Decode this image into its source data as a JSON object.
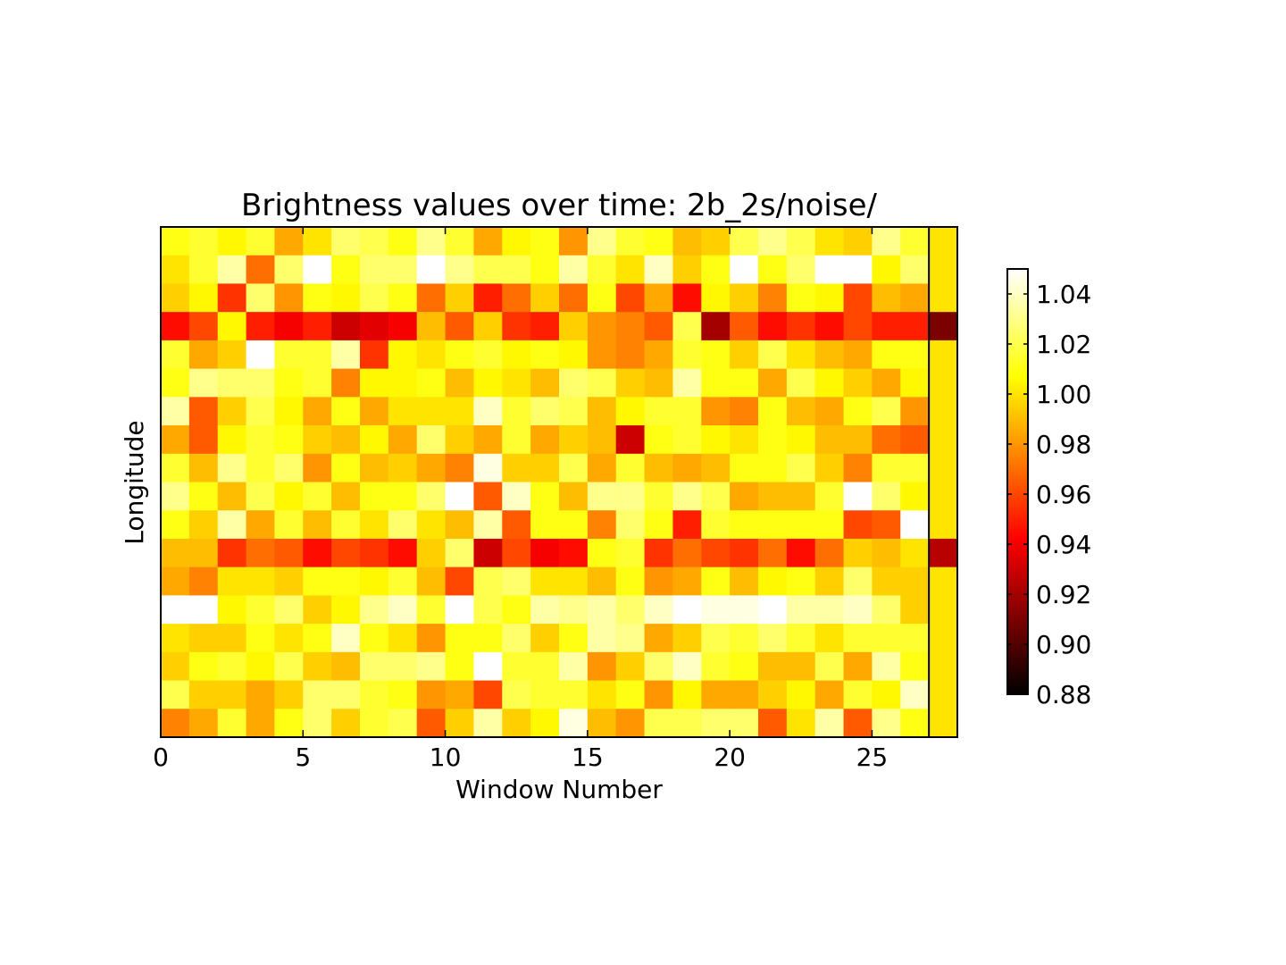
{
  "chart_data": {
    "type": "heatmap",
    "title": "Brightness values over time: 2b_2s/noise/",
    "xlabel": "Window Number",
    "ylabel": "Longitude",
    "xlim": [
      0,
      28
    ],
    "x_ticks": [
      0,
      5,
      10,
      15,
      20,
      25
    ],
    "x_tick_labels": [
      "0",
      "5",
      "10",
      "15",
      "20",
      "25"
    ],
    "n_columns": 28,
    "n_rows": 18,
    "separator_x": 27,
    "colormap": "hot",
    "color_range": [
      0.88,
      1.05
    ],
    "colorbar_ticks": [
      0.88,
      0.9,
      0.92,
      0.94,
      0.96,
      0.98,
      1.0,
      1.02,
      1.04
    ],
    "colorbar_tick_labels": [
      "0.88",
      "0.90",
      "0.92",
      "0.94",
      "0.96",
      "0.98",
      "1.00",
      "1.02",
      "1.04"
    ],
    "grid": false,
    "values": [
      [
        1.01,
        1.015,
        1.005,
        1.015,
        0.985,
        1.0,
        1.025,
        1.02,
        1.01,
        1.03,
        1.015,
        0.985,
        1.005,
        1.01,
        0.98,
        1.03,
        1.015,
        1.01,
        0.99,
        0.995,
        1.02,
        1.03,
        1.02,
        1.0,
        0.995,
        1.03,
        1.015,
        1.0
      ],
      [
        1.0,
        1.015,
        1.035,
        0.97,
        1.025,
        1.05,
        1.01,
        1.025,
        1.025,
        1.05,
        1.03,
        1.02,
        1.02,
        1.01,
        1.035,
        1.015,
        1.0,
        1.04,
        0.995,
        1.01,
        1.05,
        1.01,
        1.025,
        1.05,
        1.05,
        1.005,
        1.025,
        1.0
      ],
      [
        0.995,
        1.005,
        0.955,
        1.025,
        0.98,
        1.01,
        1.005,
        1.02,
        1.01,
        0.97,
        0.995,
        0.95,
        0.97,
        0.995,
        0.97,
        1.01,
        0.96,
        0.985,
        0.945,
        1.005,
        0.995,
        0.975,
        1.01,
        1.005,
        0.96,
        0.99,
        0.985,
        1.0
      ],
      [
        0.945,
        0.96,
        1.005,
        0.95,
        0.94,
        0.95,
        0.93,
        0.935,
        0.94,
        0.99,
        0.965,
        0.995,
        0.955,
        0.95,
        0.995,
        0.98,
        0.975,
        0.965,
        1.02,
        0.92,
        0.965,
        0.945,
        0.955,
        0.945,
        0.96,
        0.95,
        0.95,
        0.91
      ],
      [
        1.015,
        0.985,
        0.995,
        1.05,
        1.015,
        1.015,
        1.035,
        0.955,
        1.005,
        1.0,
        1.01,
        1.015,
        1.005,
        1.01,
        1.005,
        0.98,
        0.975,
        0.985,
        1.015,
        1.01,
        0.995,
        1.02,
        1.0,
        0.99,
        0.985,
        1.01,
        1.01,
        1.0
      ],
      [
        1.01,
        1.03,
        1.025,
        1.025,
        1.01,
        1.015,
        0.975,
        1.005,
        1.005,
        1.01,
        0.99,
        1.005,
        1.0,
        0.99,
        1.025,
        1.02,
        0.995,
        0.99,
        1.035,
        1.01,
        1.01,
        0.985,
        1.02,
        1.005,
        0.995,
        0.985,
        1.005,
        1.0
      ],
      [
        1.035,
        0.965,
        0.995,
        1.02,
        1.005,
        0.985,
        1.01,
        0.985,
        1.0,
        1.0,
        1.0,
        1.04,
        1.015,
        1.025,
        1.02,
        0.99,
        1.005,
        1.015,
        1.015,
        0.98,
        0.975,
        1.01,
        0.99,
        0.985,
        1.01,
        1.02,
        0.98,
        1.0
      ],
      [
        0.985,
        0.965,
        1.005,
        1.015,
        1.01,
        0.995,
        0.99,
        1.005,
        0.985,
        1.025,
        0.995,
        0.985,
        1.015,
        0.985,
        0.995,
        0.99,
        0.93,
        1.01,
        1.015,
        1.005,
        1.0,
        1.01,
        1.005,
        0.99,
        0.99,
        0.97,
        0.965,
        1.0
      ],
      [
        1.015,
        0.99,
        1.03,
        1.015,
        1.025,
        0.98,
        1.01,
        0.99,
        0.995,
        0.985,
        0.975,
        1.045,
        0.995,
        0.995,
        1.02,
        0.985,
        1.015,
        0.99,
        0.985,
        0.99,
        1.01,
        1.01,
        1.02,
        0.995,
        0.975,
        1.015,
        1.015,
        1.0
      ],
      [
        1.03,
        1.01,
        0.99,
        1.02,
        1.005,
        1.015,
        0.99,
        1.01,
        1.01,
        1.025,
        1.05,
        0.965,
        1.04,
        1.01,
        0.99,
        1.03,
        1.03,
        1.015,
        1.03,
        1.02,
        0.985,
        0.99,
        0.99,
        1.015,
        1.05,
        1.025,
        1.005,
        1.0
      ],
      [
        1.01,
        0.995,
        1.035,
        0.985,
        1.015,
        0.99,
        1.015,
        1.0,
        1.025,
        1.0,
        0.99,
        1.035,
        0.965,
        1.01,
        1.01,
        0.975,
        1.025,
        1.01,
        0.95,
        1.015,
        1.01,
        1.01,
        1.01,
        1.01,
        0.96,
        0.965,
        1.05,
        1.0
      ],
      [
        0.99,
        0.99,
        0.955,
        0.97,
        0.965,
        0.945,
        0.96,
        0.955,
        0.945,
        0.995,
        1.025,
        0.93,
        0.96,
        0.94,
        0.945,
        1.01,
        1.015,
        0.955,
        0.97,
        0.96,
        0.955,
        0.97,
        0.945,
        0.97,
        0.995,
        0.99,
        1.0,
        0.925
      ],
      [
        0.985,
        0.975,
        1.0,
        1.0,
        0.995,
        1.01,
        1.01,
        1.005,
        1.015,
        0.99,
        0.96,
        1.02,
        1.025,
        1.0,
        1.0,
        0.99,
        1.01,
        0.98,
        0.985,
        1.01,
        0.99,
        1.005,
        1.01,
        0.995,
        1.025,
        0.995,
        0.995,
        1.0
      ],
      [
        1.05,
        1.05,
        1.005,
        1.015,
        1.025,
        0.995,
        1.005,
        1.03,
        1.04,
        1.015,
        1.05,
        1.02,
        1.01,
        1.035,
        1.03,
        1.035,
        1.025,
        1.04,
        1.05,
        1.045,
        1.045,
        1.05,
        1.035,
        1.035,
        1.04,
        1.025,
        0.995,
        1.0
      ],
      [
        1.0,
        0.995,
        0.995,
        1.01,
        1.0,
        1.01,
        1.04,
        1.01,
        1.0,
        0.98,
        1.01,
        1.01,
        1.025,
        0.995,
        1.01,
        1.035,
        1.03,
        0.985,
        0.995,
        1.02,
        1.015,
        1.025,
        1.015,
        1.0,
        1.015,
        1.015,
        1.015,
        1.0
      ],
      [
        0.995,
        1.01,
        1.015,
        1.005,
        1.02,
        0.995,
        0.99,
        1.025,
        1.025,
        1.03,
        1.01,
        1.05,
        1.015,
        1.015,
        1.035,
        0.98,
        0.995,
        1.025,
        1.04,
        1.015,
        1.01,
        0.99,
        0.99,
        1.02,
        0.985,
        1.035,
        1.01,
        1.0
      ],
      [
        1.02,
        0.995,
        0.995,
        0.985,
        0.995,
        1.025,
        1.025,
        1.015,
        1.01,
        0.98,
        0.985,
        0.96,
        1.02,
        1.015,
        1.015,
        1.0,
        1.01,
        0.98,
        1.005,
        0.985,
        0.985,
        0.995,
        1.005,
        0.985,
        1.015,
        1.005,
        1.04,
        1.0
      ],
      [
        0.975,
        0.985,
        1.015,
        0.985,
        1.01,
        1.025,
        0.995,
        1.015,
        1.02,
        0.965,
        0.995,
        1.035,
        0.995,
        1.005,
        1.045,
        0.99,
        0.98,
        1.02,
        1.02,
        1.025,
        1.025,
        0.965,
        1.0,
        1.035,
        0.965,
        1.03,
        1.01,
        1.0
      ]
    ]
  }
}
